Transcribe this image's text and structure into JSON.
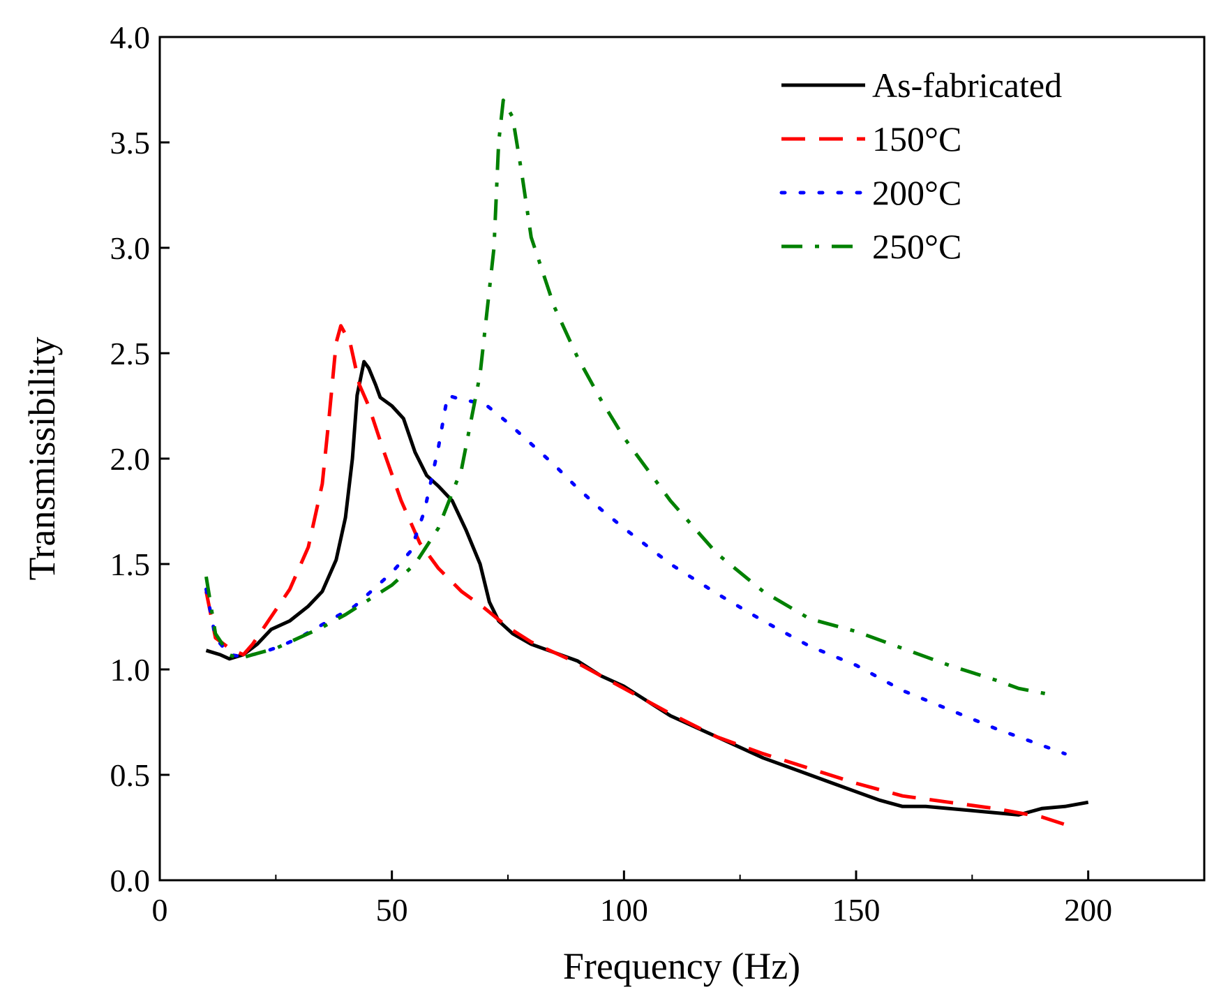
{
  "chart_data": {
    "type": "line",
    "xlabel": "Frequency (Hz)",
    "ylabel": "Transmissibility",
    "xlim": [
      0,
      225
    ],
    "ylim": [
      0,
      4.0
    ],
    "xticks": [
      0,
      50,
      100,
      150,
      200
    ],
    "xtick_labels": [
      "0",
      "50",
      "100",
      "150",
      "200"
    ],
    "yticks": [
      0,
      0.5,
      1.0,
      1.5,
      2.0,
      2.5,
      3.0,
      3.5,
      4.0
    ],
    "ytick_labels": [
      "0.0",
      "0.5",
      "1.0",
      "1.5",
      "2.0",
      "2.5",
      "3.0",
      "3.5",
      "4.0"
    ],
    "grid": false,
    "legend_position": "top-right",
    "series": [
      {
        "name": "As-fabricated",
        "color": "#000000",
        "style": "solid",
        "points": [
          [
            10,
            1.09
          ],
          [
            13,
            1.07
          ],
          [
            15,
            1.05
          ],
          [
            18,
            1.07
          ],
          [
            21,
            1.12
          ],
          [
            24,
            1.19
          ],
          [
            28,
            1.23
          ],
          [
            32,
            1.3
          ],
          [
            35,
            1.37
          ],
          [
            38,
            1.52
          ],
          [
            40,
            1.72
          ],
          [
            41.5,
            2.0
          ],
          [
            42.5,
            2.3
          ],
          [
            44,
            2.46
          ],
          [
            45,
            2.43
          ],
          [
            46.5,
            2.35
          ],
          [
            47.5,
            2.29
          ],
          [
            50,
            2.25
          ],
          [
            52.5,
            2.19
          ],
          [
            55,
            2.03
          ],
          [
            57.5,
            1.92
          ],
          [
            60,
            1.87
          ],
          [
            63,
            1.8
          ],
          [
            66,
            1.66
          ],
          [
            69,
            1.5
          ],
          [
            71,
            1.32
          ],
          [
            73,
            1.23
          ],
          [
            76,
            1.17
          ],
          [
            80,
            1.12
          ],
          [
            85,
            1.08
          ],
          [
            90,
            1.04
          ],
          [
            95,
            0.97
          ],
          [
            100,
            0.92
          ],
          [
            105,
            0.85
          ],
          [
            110,
            0.78
          ],
          [
            115,
            0.73
          ],
          [
            120,
            0.68
          ],
          [
            125,
            0.63
          ],
          [
            130,
            0.58
          ],
          [
            135,
            0.54
          ],
          [
            140,
            0.5
          ],
          [
            145,
            0.46
          ],
          [
            150,
            0.42
          ],
          [
            155,
            0.38
          ],
          [
            160,
            0.35
          ],
          [
            165,
            0.35
          ],
          [
            170,
            0.34
          ],
          [
            175,
            0.33
          ],
          [
            180,
            0.32
          ],
          [
            185,
            0.31
          ],
          [
            190,
            0.34
          ],
          [
            195,
            0.35
          ],
          [
            200,
            0.37
          ]
        ]
      },
      {
        "name": "150°C",
        "color": "#ff0000",
        "style": "dash",
        "points": [
          [
            10,
            1.37
          ],
          [
            12,
            1.15
          ],
          [
            15,
            1.1
          ],
          [
            18,
            1.07
          ],
          [
            20,
            1.12
          ],
          [
            24,
            1.25
          ],
          [
            28,
            1.38
          ],
          [
            32,
            1.58
          ],
          [
            35,
            1.88
          ],
          [
            36.5,
            2.2
          ],
          [
            38,
            2.55
          ],
          [
            39,
            2.63
          ],
          [
            41,
            2.55
          ],
          [
            43,
            2.35
          ],
          [
            45,
            2.25
          ],
          [
            48,
            2.05
          ],
          [
            52,
            1.8
          ],
          [
            56,
            1.6
          ],
          [
            60,
            1.48
          ],
          [
            65,
            1.37
          ],
          [
            70,
            1.29
          ],
          [
            75,
            1.2
          ],
          [
            80,
            1.13
          ],
          [
            90,
            1.03
          ],
          [
            100,
            0.91
          ],
          [
            110,
            0.79
          ],
          [
            120,
            0.68
          ],
          [
            130,
            0.6
          ],
          [
            140,
            0.53
          ],
          [
            150,
            0.46
          ],
          [
            160,
            0.4
          ],
          [
            170,
            0.37
          ],
          [
            180,
            0.34
          ],
          [
            190,
            0.3
          ],
          [
            197,
            0.25
          ]
        ]
      },
      {
        "name": "200°C",
        "color": "#0000ff",
        "style": "dot",
        "points": [
          [
            10,
            1.38
          ],
          [
            12,
            1.15
          ],
          [
            15,
            1.07
          ],
          [
            18,
            1.06
          ],
          [
            22,
            1.08
          ],
          [
            26,
            1.11
          ],
          [
            30,
            1.15
          ],
          [
            34,
            1.2
          ],
          [
            38,
            1.25
          ],
          [
            42,
            1.3
          ],
          [
            46,
            1.38
          ],
          [
            50,
            1.46
          ],
          [
            54,
            1.56
          ],
          [
            57,
            1.75
          ],
          [
            60,
            2.05
          ],
          [
            62,
            2.3
          ],
          [
            65,
            2.28
          ],
          [
            70,
            2.26
          ],
          [
            75,
            2.17
          ],
          [
            80,
            2.07
          ],
          [
            85,
            1.97
          ],
          [
            90,
            1.86
          ],
          [
            95,
            1.76
          ],
          [
            100,
            1.67
          ],
          [
            110,
            1.5
          ],
          [
            120,
            1.36
          ],
          [
            130,
            1.23
          ],
          [
            140,
            1.11
          ],
          [
            150,
            1.02
          ],
          [
            160,
            0.9
          ],
          [
            170,
            0.81
          ],
          [
            180,
            0.72
          ],
          [
            190,
            0.64
          ],
          [
            195,
            0.6
          ]
        ]
      },
      {
        "name": "250°C",
        "color": "#008000",
        "style": "dashdot",
        "points": [
          [
            10,
            1.44
          ],
          [
            12,
            1.17
          ],
          [
            15,
            1.07
          ],
          [
            17,
            1.05
          ],
          [
            20,
            1.07
          ],
          [
            25,
            1.1
          ],
          [
            30,
            1.15
          ],
          [
            35,
            1.2
          ],
          [
            40,
            1.26
          ],
          [
            45,
            1.33
          ],
          [
            50,
            1.4
          ],
          [
            55,
            1.5
          ],
          [
            60,
            1.67
          ],
          [
            65,
            1.95
          ],
          [
            69,
            2.4
          ],
          [
            72,
            3.0
          ],
          [
            73,
            3.5
          ],
          [
            74,
            3.7
          ],
          [
            76,
            3.62
          ],
          [
            78,
            3.35
          ],
          [
            80,
            3.05
          ],
          [
            85,
            2.72
          ],
          [
            90,
            2.48
          ],
          [
            95,
            2.28
          ],
          [
            100,
            2.1
          ],
          [
            110,
            1.8
          ],
          [
            120,
            1.55
          ],
          [
            130,
            1.37
          ],
          [
            140,
            1.24
          ],
          [
            150,
            1.18
          ],
          [
            160,
            1.1
          ],
          [
            170,
            1.02
          ],
          [
            180,
            0.95
          ],
          [
            185,
            0.91
          ],
          [
            192,
            0.88
          ]
        ]
      }
    ]
  }
}
